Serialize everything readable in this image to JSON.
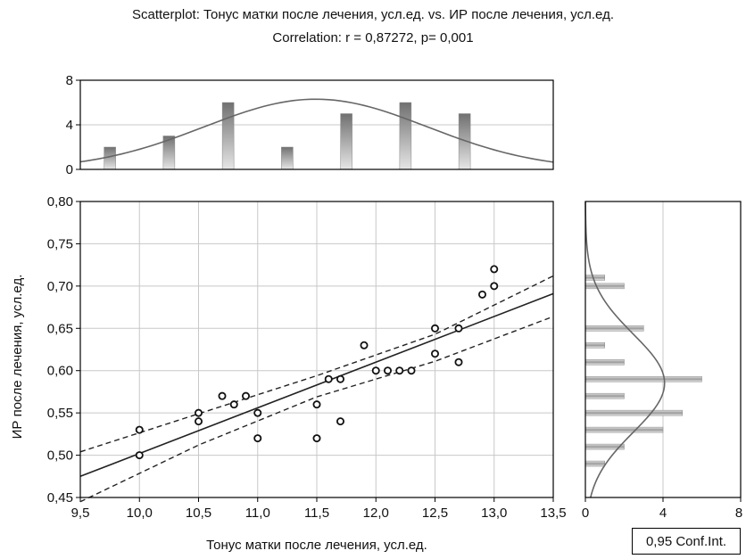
{
  "chart_data": {
    "type": "scatter",
    "title": "Scatterplot: Тонус матки после лечения, усл.ед. vs. ИР после лечения, усл.ед.",
    "subtitle": "Correlation: r = 0,87272, p= 0,001",
    "xlabel": "Тонус матки после лечения, усл.ед.",
    "ylabel": "ИР после лечения, усл.ед.",
    "xlim": [
      9.5,
      13.5
    ],
    "ylim": [
      0.45,
      0.8
    ],
    "x_ticks": [
      "9,5",
      "10,0",
      "10,5",
      "11,0",
      "11,5",
      "12,0",
      "12,5",
      "13,0",
      "13,5"
    ],
    "y_ticks": [
      "0,80",
      "0,75",
      "0,70",
      "0,65",
      "0,60",
      "0,55",
      "0,50",
      "0,45"
    ],
    "grid": true,
    "points": [
      {
        "x": 10.0,
        "y": 0.53
      },
      {
        "x": 10.0,
        "y": 0.5
      },
      {
        "x": 10.5,
        "y": 0.55
      },
      {
        "x": 10.5,
        "y": 0.54
      },
      {
        "x": 10.7,
        "y": 0.57
      },
      {
        "x": 10.8,
        "y": 0.56
      },
      {
        "x": 10.9,
        "y": 0.57
      },
      {
        "x": 11.0,
        "y": 0.55
      },
      {
        "x": 11.0,
        "y": 0.52
      },
      {
        "x": 11.5,
        "y": 0.56
      },
      {
        "x": 11.5,
        "y": 0.52
      },
      {
        "x": 11.6,
        "y": 0.59
      },
      {
        "x": 11.7,
        "y": 0.59
      },
      {
        "x": 11.7,
        "y": 0.54
      },
      {
        "x": 11.9,
        "y": 0.63
      },
      {
        "x": 12.0,
        "y": 0.6
      },
      {
        "x": 12.1,
        "y": 0.6
      },
      {
        "x": 12.2,
        "y": 0.6
      },
      {
        "x": 12.3,
        "y": 0.6
      },
      {
        "x": 12.5,
        "y": 0.65
      },
      {
        "x": 12.5,
        "y": 0.62
      },
      {
        "x": 12.7,
        "y": 0.65
      },
      {
        "x": 12.7,
        "y": 0.61
      },
      {
        "x": 12.9,
        "y": 0.69
      },
      {
        "x": 13.0,
        "y": 0.7
      },
      {
        "x": 13.0,
        "y": 0.72
      }
    ],
    "regression_line": {
      "x": [
        9.5,
        13.5
      ],
      "y": [
        0.475,
        0.691
      ]
    },
    "confidence_band": {
      "level": "0,95 Conf.Int.",
      "upper": {
        "x": [
          9.5,
          10.5,
          11.5,
          12.5,
          13.5
        ],
        "y": [
          0.504,
          0.549,
          0.594,
          0.643,
          0.712
        ]
      },
      "lower": {
        "x": [
          9.5,
          10.5,
          11.5,
          12.5,
          13.5
        ],
        "y": [
          0.445,
          0.512,
          0.569,
          0.611,
          0.664
        ]
      }
    },
    "top_histogram": {
      "ylim": [
        0,
        8
      ],
      "y_ticks": [
        "8",
        "4",
        "0"
      ],
      "bars": [
        {
          "x": 9.75,
          "count": 2
        },
        {
          "x": 10.25,
          "count": 3
        },
        {
          "x": 10.75,
          "count": 6
        },
        {
          "x": 11.25,
          "count": 2
        },
        {
          "x": 11.75,
          "count": 5
        },
        {
          "x": 12.25,
          "count": 6
        },
        {
          "x": 12.75,
          "count": 5
        }
      ]
    },
    "right_histogram": {
      "xlim": [
        0,
        8
      ],
      "x_ticks": [
        "0",
        "4",
        "8"
      ],
      "bars": [
        {
          "y": 0.71,
          "count": 1
        },
        {
          "y": 0.7,
          "count": 2
        },
        {
          "y": 0.65,
          "count": 3
        },
        {
          "y": 0.63,
          "count": 1
        },
        {
          "y": 0.61,
          "count": 2
        },
        {
          "y": 0.59,
          "count": 6
        },
        {
          "y": 0.57,
          "count": 2
        },
        {
          "y": 0.55,
          "count": 5
        },
        {
          "y": 0.53,
          "count": 4
        },
        {
          "y": 0.51,
          "count": 2
        },
        {
          "y": 0.49,
          "count": 1
        }
      ]
    },
    "colors": {
      "points": "#111111",
      "line": "#222222",
      "grid": "#c8c8c8",
      "bar_top": "#707070",
      "bar_bottom": "#e6e6e6",
      "curve": "#666666"
    }
  }
}
